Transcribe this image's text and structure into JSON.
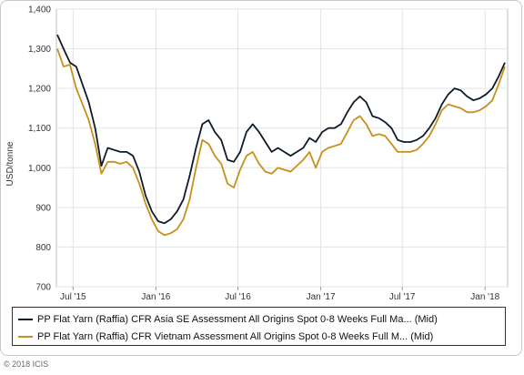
{
  "chart_data": {
    "type": "line",
    "title": "",
    "xlabel": "",
    "ylabel": "USD/tonne",
    "ylim": [
      700,
      1400
    ],
    "yticks": [
      700,
      800,
      900,
      1000,
      1100,
      1200,
      1300,
      1400
    ],
    "xlim": [
      "2015-05-25",
      "2018-02-20"
    ],
    "xticks": [
      {
        "label": "Jul '15",
        "date": "2015-07-01"
      },
      {
        "label": "Jan '16",
        "date": "2016-01-01"
      },
      {
        "label": "Jul '16",
        "date": "2016-07-01"
      },
      {
        "label": "Jan '17",
        "date": "2017-01-01"
      },
      {
        "label": "Jul '17",
        "date": "2017-07-01"
      },
      {
        "label": "Jan '18",
        "date": "2018-01-01"
      }
    ],
    "grid": true,
    "legend_position": "bottom",
    "series": [
      {
        "name": "PP Flat Yarn (Raffia) CFR Asia SE Assessment All Origins Spot 0-8 Weeks Full Ma... (Mid)",
        "color": "#0d1b2a",
        "points": [
          [
            "2015-05-27",
            1335
          ],
          [
            "2015-06-10",
            1300
          ],
          [
            "2015-06-24",
            1265
          ],
          [
            "2015-07-08",
            1255
          ],
          [
            "2015-07-22",
            1210
          ],
          [
            "2015-08-05",
            1165
          ],
          [
            "2015-08-19",
            1100
          ],
          [
            "2015-09-02",
            1005
          ],
          [
            "2015-09-16",
            1050
          ],
          [
            "2015-09-30",
            1045
          ],
          [
            "2015-10-14",
            1040
          ],
          [
            "2015-10-28",
            1040
          ],
          [
            "2015-11-11",
            1030
          ],
          [
            "2015-11-25",
            990
          ],
          [
            "2015-12-09",
            930
          ],
          [
            "2015-12-23",
            890
          ],
          [
            "2016-01-06",
            865
          ],
          [
            "2016-01-20",
            860
          ],
          [
            "2016-02-03",
            870
          ],
          [
            "2016-02-17",
            890
          ],
          [
            "2016-03-02",
            920
          ],
          [
            "2016-03-16",
            980
          ],
          [
            "2016-03-30",
            1050
          ],
          [
            "2016-04-13",
            1110
          ],
          [
            "2016-04-27",
            1120
          ],
          [
            "2016-05-11",
            1090
          ],
          [
            "2016-05-25",
            1070
          ],
          [
            "2016-06-08",
            1020
          ],
          [
            "2016-06-22",
            1015
          ],
          [
            "2016-07-06",
            1040
          ],
          [
            "2016-07-20",
            1090
          ],
          [
            "2016-08-03",
            1110
          ],
          [
            "2016-08-17",
            1090
          ],
          [
            "2016-08-31",
            1065
          ],
          [
            "2016-09-14",
            1040
          ],
          [
            "2016-09-28",
            1050
          ],
          [
            "2016-10-12",
            1040
          ],
          [
            "2016-10-26",
            1030
          ],
          [
            "2016-11-09",
            1040
          ],
          [
            "2016-11-23",
            1050
          ],
          [
            "2016-12-07",
            1075
          ],
          [
            "2016-12-21",
            1065
          ],
          [
            "2017-01-04",
            1090
          ],
          [
            "2017-01-18",
            1100
          ],
          [
            "2017-02-01",
            1100
          ],
          [
            "2017-02-15",
            1110
          ],
          [
            "2017-03-01",
            1140
          ],
          [
            "2017-03-15",
            1165
          ],
          [
            "2017-03-29",
            1180
          ],
          [
            "2017-04-12",
            1165
          ],
          [
            "2017-04-26",
            1130
          ],
          [
            "2017-05-10",
            1125
          ],
          [
            "2017-05-24",
            1115
          ],
          [
            "2017-06-07",
            1100
          ],
          [
            "2017-06-21",
            1070
          ],
          [
            "2017-07-05",
            1065
          ],
          [
            "2017-07-19",
            1065
          ],
          [
            "2017-08-02",
            1070
          ],
          [
            "2017-08-16",
            1080
          ],
          [
            "2017-08-30",
            1100
          ],
          [
            "2017-09-13",
            1125
          ],
          [
            "2017-09-27",
            1160
          ],
          [
            "2017-10-11",
            1185
          ],
          [
            "2017-10-25",
            1200
          ],
          [
            "2017-11-08",
            1195
          ],
          [
            "2017-11-22",
            1180
          ],
          [
            "2017-12-06",
            1170
          ],
          [
            "2017-12-20",
            1175
          ],
          [
            "2018-01-03",
            1185
          ],
          [
            "2018-01-17",
            1200
          ],
          [
            "2018-01-31",
            1230
          ],
          [
            "2018-02-14",
            1265
          ]
        ]
      },
      {
        "name": "PP Flat Yarn (Raffia) CFR Vietnam Assessment All Origins Spot 0-8 Weeks Full M... (Mid)",
        "color": "#c8901a",
        "points": [
          [
            "2015-05-27",
            1300
          ],
          [
            "2015-06-10",
            1255
          ],
          [
            "2015-06-24",
            1260
          ],
          [
            "2015-07-08",
            1200
          ],
          [
            "2015-07-22",
            1160
          ],
          [
            "2015-08-05",
            1120
          ],
          [
            "2015-08-19",
            1060
          ],
          [
            "2015-09-02",
            985
          ],
          [
            "2015-09-16",
            1015
          ],
          [
            "2015-09-30",
            1015
          ],
          [
            "2015-10-14",
            1010
          ],
          [
            "2015-10-28",
            1015
          ],
          [
            "2015-11-11",
            1000
          ],
          [
            "2015-11-25",
            960
          ],
          [
            "2015-12-09",
            910
          ],
          [
            "2015-12-23",
            870
          ],
          [
            "2016-01-06",
            840
          ],
          [
            "2016-01-20",
            830
          ],
          [
            "2016-02-03",
            835
          ],
          [
            "2016-02-17",
            845
          ],
          [
            "2016-03-02",
            870
          ],
          [
            "2016-03-16",
            920
          ],
          [
            "2016-03-30",
            1000
          ],
          [
            "2016-04-13",
            1070
          ],
          [
            "2016-04-27",
            1060
          ],
          [
            "2016-05-11",
            1030
          ],
          [
            "2016-05-25",
            1010
          ],
          [
            "2016-06-08",
            960
          ],
          [
            "2016-06-22",
            950
          ],
          [
            "2016-07-06",
            995
          ],
          [
            "2016-07-20",
            1030
          ],
          [
            "2016-08-03",
            1040
          ],
          [
            "2016-08-17",
            1010
          ],
          [
            "2016-08-31",
            990
          ],
          [
            "2016-09-14",
            985
          ],
          [
            "2016-09-28",
            1000
          ],
          [
            "2016-10-12",
            995
          ],
          [
            "2016-10-26",
            990
          ],
          [
            "2016-11-09",
            1005
          ],
          [
            "2016-11-23",
            1020
          ],
          [
            "2016-12-07",
            1040
          ],
          [
            "2016-12-21",
            1000
          ],
          [
            "2017-01-04",
            1040
          ],
          [
            "2017-01-18",
            1050
          ],
          [
            "2017-02-01",
            1055
          ],
          [
            "2017-02-15",
            1060
          ],
          [
            "2017-03-01",
            1090
          ],
          [
            "2017-03-15",
            1120
          ],
          [
            "2017-03-29",
            1130
          ],
          [
            "2017-04-12",
            1110
          ],
          [
            "2017-04-26",
            1080
          ],
          [
            "2017-05-10",
            1085
          ],
          [
            "2017-05-24",
            1080
          ],
          [
            "2017-06-07",
            1060
          ],
          [
            "2017-06-21",
            1040
          ],
          [
            "2017-07-05",
            1040
          ],
          [
            "2017-07-19",
            1040
          ],
          [
            "2017-08-02",
            1045
          ],
          [
            "2017-08-16",
            1060
          ],
          [
            "2017-08-30",
            1080
          ],
          [
            "2017-09-13",
            1110
          ],
          [
            "2017-09-27",
            1145
          ],
          [
            "2017-10-11",
            1160
          ],
          [
            "2017-10-25",
            1155
          ],
          [
            "2017-11-08",
            1150
          ],
          [
            "2017-11-22",
            1140
          ],
          [
            "2017-12-06",
            1140
          ],
          [
            "2017-12-20",
            1145
          ],
          [
            "2018-01-03",
            1155
          ],
          [
            "2018-01-17",
            1170
          ],
          [
            "2018-01-31",
            1210
          ],
          [
            "2018-02-14",
            1255
          ]
        ]
      }
    ]
  },
  "legend": {
    "items": [
      {
        "label": "PP Flat Yarn (Raffia) CFR Asia SE Assessment All Origins Spot 0-8 Weeks Full Ma... (Mid)",
        "color": "#0d1b2a"
      },
      {
        "label": "PP Flat Yarn (Raffia) CFR Vietnam Assessment All Origins Spot 0-8 Weeks Full M... (Mid)",
        "color": "#c8901a"
      }
    ]
  },
  "copyright": "© 2018 ICIS"
}
